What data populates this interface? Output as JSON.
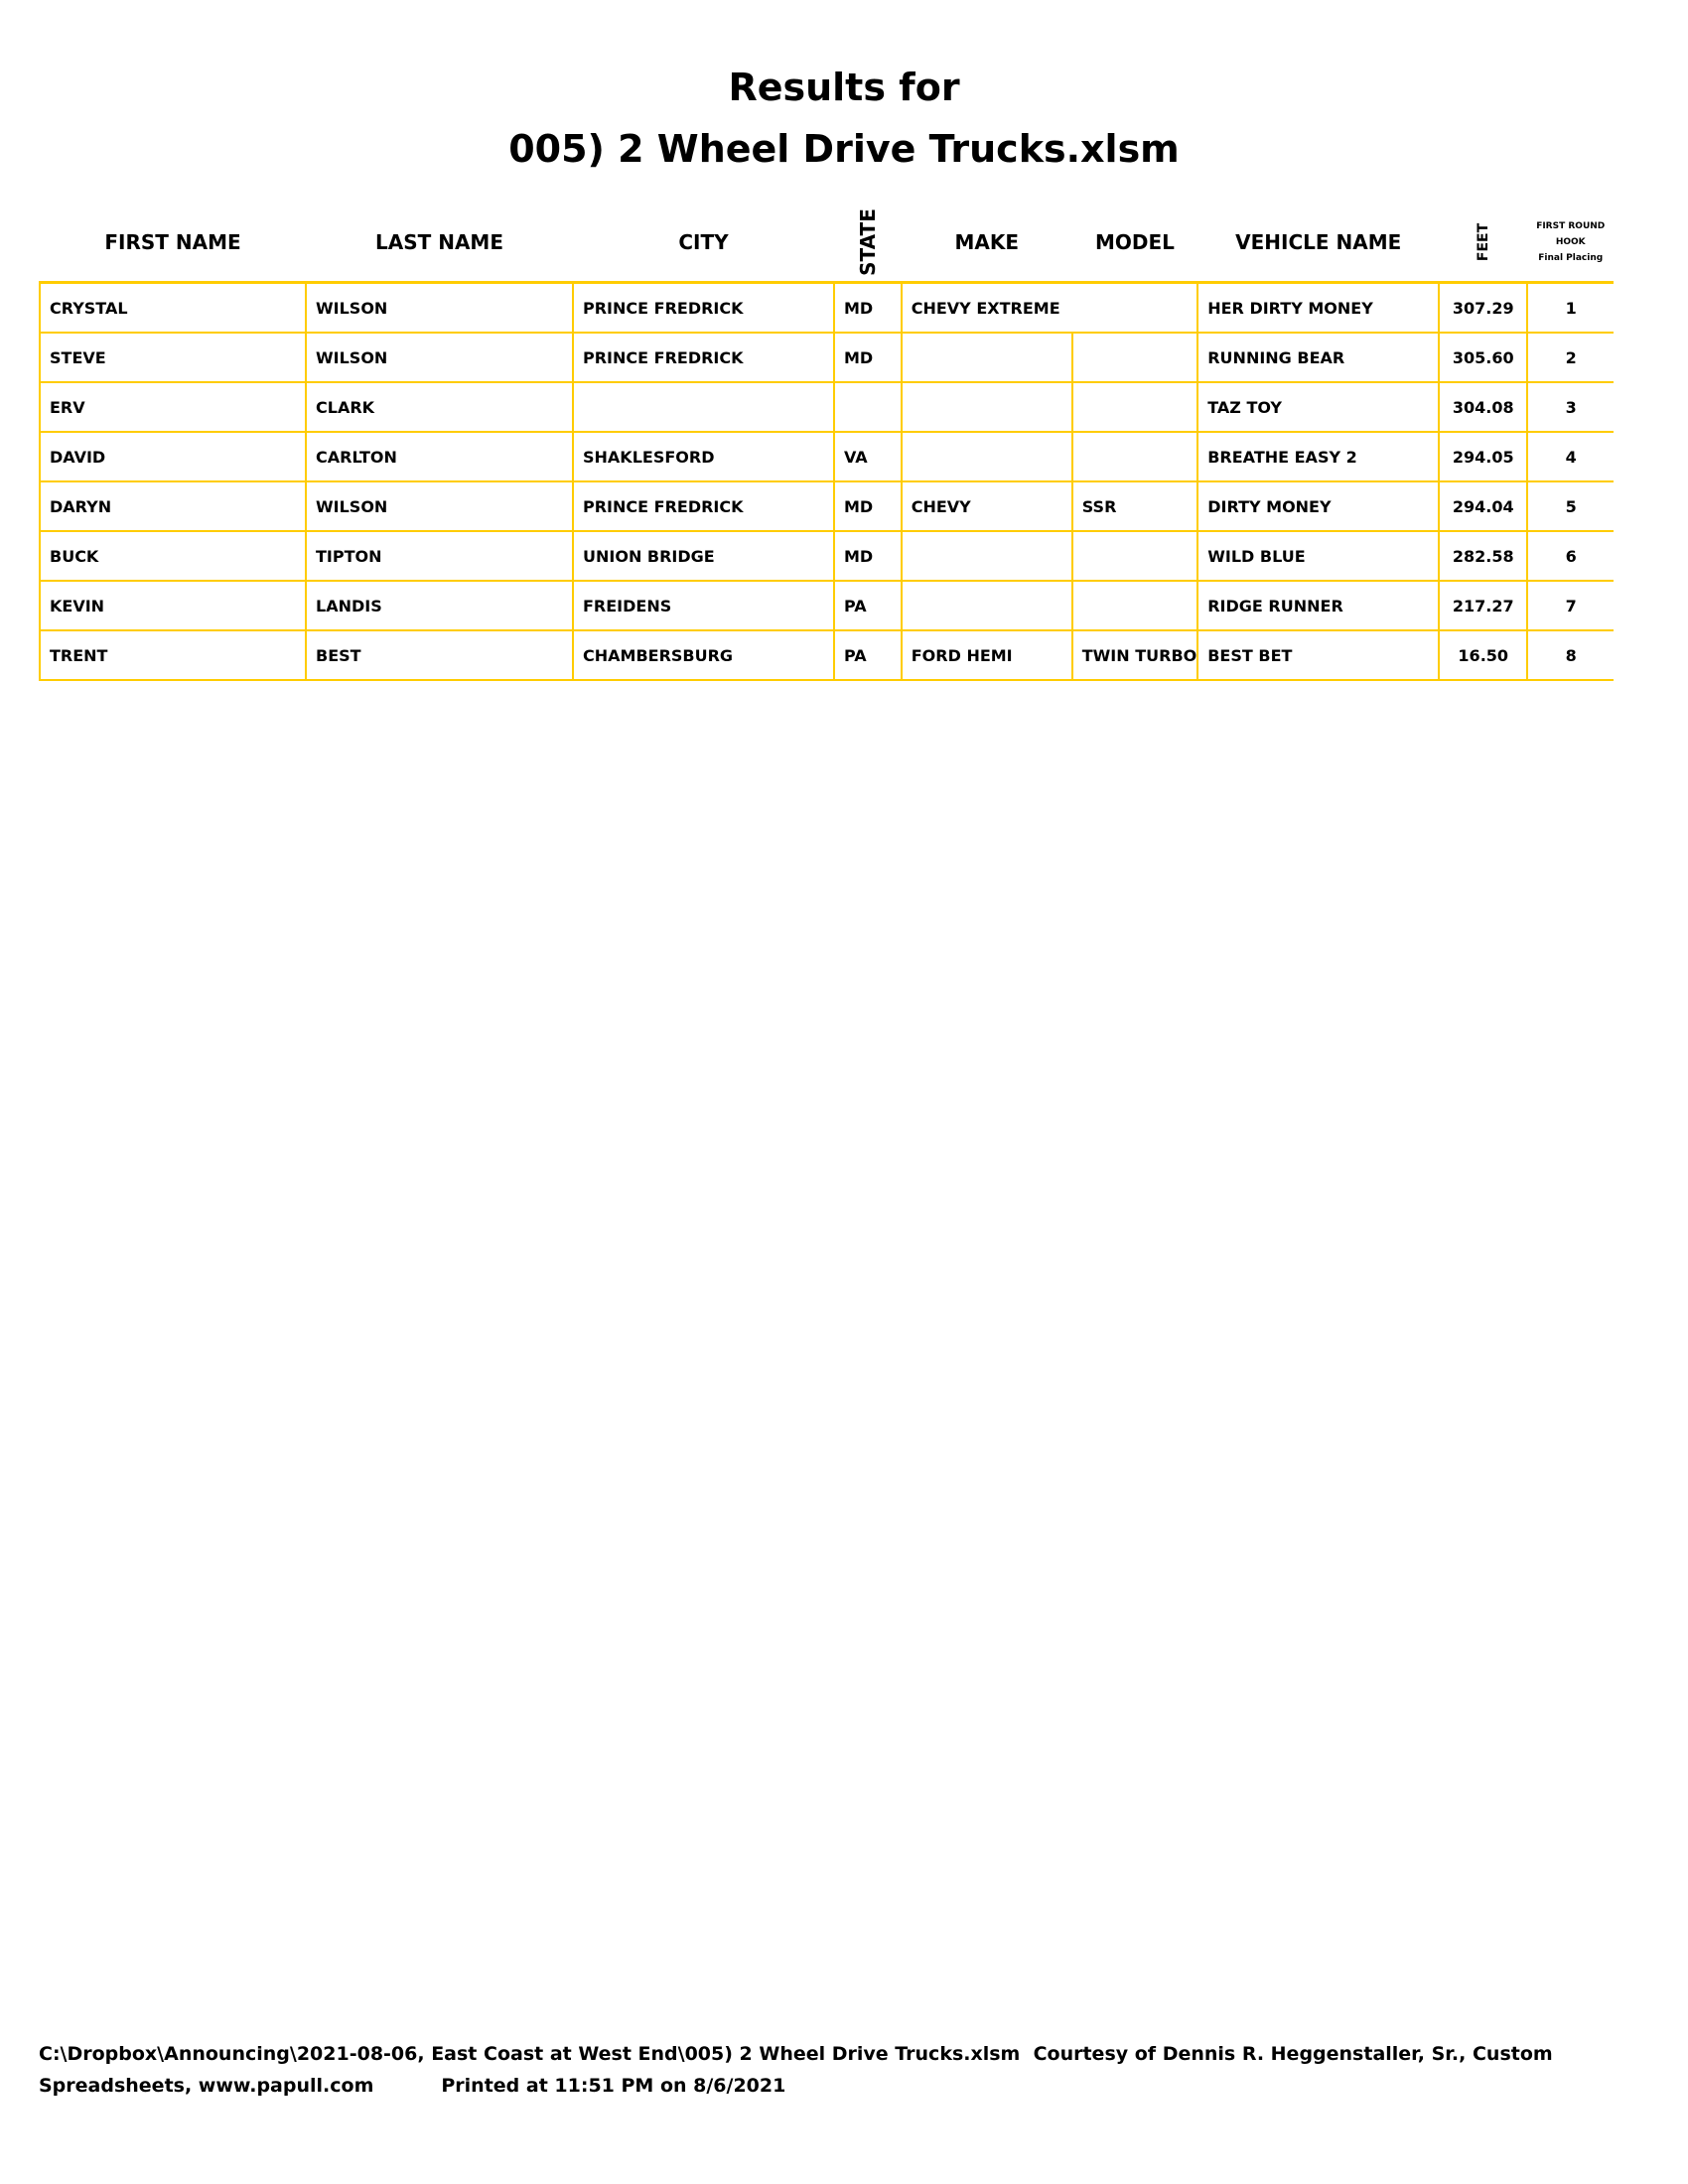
{
  "title_line1": "Results for",
  "title_line2": "005) 2 Wheel Drive Trucks.xlsm",
  "headers": {
    "first_name": "FIRST NAME",
    "last_name": "LAST NAME",
    "city": "CITY",
    "state": "STATE",
    "make": "MAKE",
    "model": "MODEL",
    "vehicle_name": "VEHICLE NAME",
    "feet": "FEET",
    "placing_1": "FIRST ROUND",
    "placing_2": "HOOK",
    "placing_3": "Final Placing"
  },
  "rows": [
    {
      "first": "CRYSTAL",
      "last": "WILSON",
      "city": "PRINCE FREDRICK",
      "state": "MD",
      "make": "CHEVY EXTREME",
      "model": "",
      "vehicle": "HER DIRTY MONEY",
      "feet": "307.29",
      "place": "1"
    },
    {
      "first": "STEVE",
      "last": "WILSON",
      "city": "PRINCE FREDRICK",
      "state": "MD",
      "make": "",
      "model": "",
      "vehicle": "RUNNING BEAR",
      "feet": "305.60",
      "place": "2"
    },
    {
      "first": "ERV",
      "last": "CLARK",
      "city": "",
      "state": "",
      "make": "",
      "model": "",
      "vehicle": "TAZ TOY",
      "feet": "304.08",
      "place": "3"
    },
    {
      "first": "DAVID",
      "last": "CARLTON",
      "city": "SHAKLESFORD",
      "state": "VA",
      "make": "",
      "model": "",
      "vehicle": "BREATHE EASY 2",
      "feet": "294.05",
      "place": "4"
    },
    {
      "first": "DARYN",
      "last": "WILSON",
      "city": "PRINCE FREDRICK",
      "state": "MD",
      "make": "CHEVY",
      "model": "SSR",
      "vehicle": "DIRTY MONEY",
      "feet": "294.04",
      "place": "5"
    },
    {
      "first": "BUCK",
      "last": "TIPTON",
      "city": "UNION BRIDGE",
      "state": "MD",
      "make": "",
      "model": "",
      "vehicle": "WILD BLUE",
      "feet": "282.58",
      "place": "6"
    },
    {
      "first": "KEVIN",
      "last": "LANDIS",
      "city": "FREIDENS",
      "state": "PA",
      "make": "",
      "model": "",
      "vehicle": "RIDGE RUNNER",
      "feet": "217.27",
      "place": "7"
    },
    {
      "first": "TRENT",
      "last": "BEST",
      "city": "CHAMBERSBURG",
      "state": "PA",
      "make": "FORD HEMI",
      "model": "TWIN TURBO",
      "vehicle": "BEST BET",
      "feet": "16.50",
      "place": "8"
    }
  ],
  "footer_line1": "C:\\Dropbox\\Announcing\\2021-08-06, East Coast at West End\\005) 2 Wheel Drive Trucks.xlsm  Courtesy of Dennis R. Heggenstaller, Sr., Custom",
  "footer_line2_a": "Spreadsheets, www.papull.com",
  "footer_line2_b": "Printed at 11:51 PM on 8/6/2021",
  "border_color": "#FFCC00"
}
